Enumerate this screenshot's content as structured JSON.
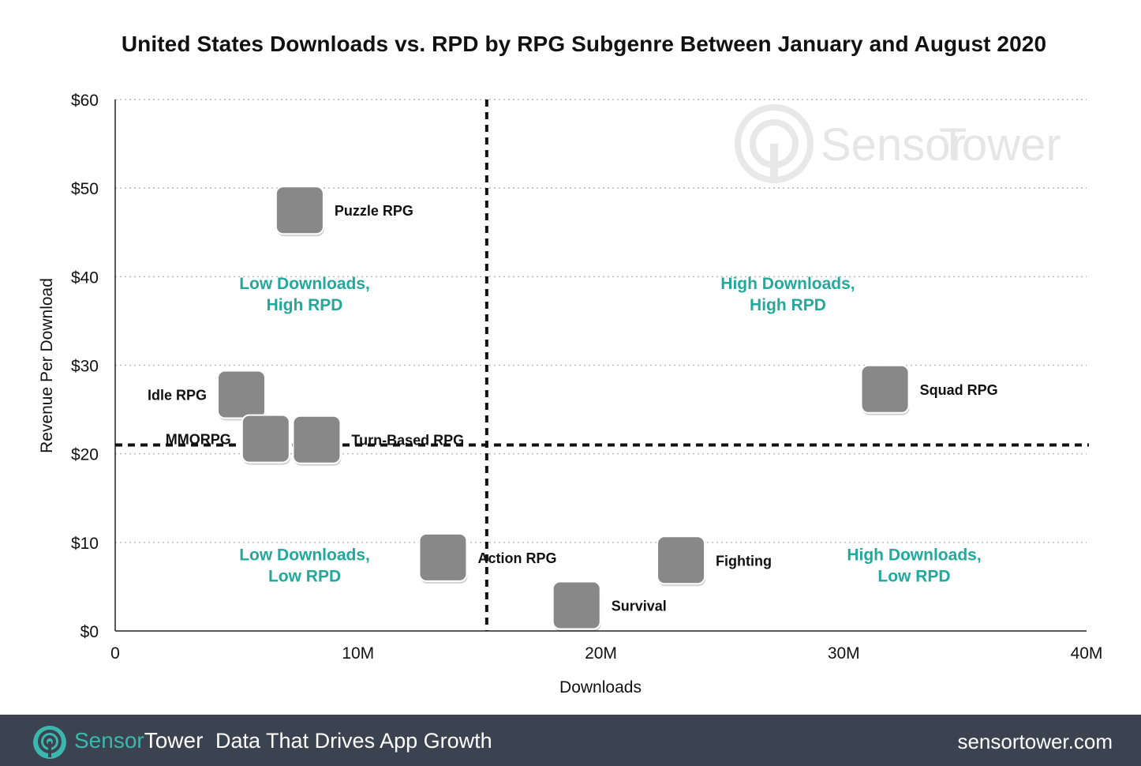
{
  "title": "United States Downloads vs. RPD by RPG Subgenre Between January and August 2020",
  "watermark": {
    "brand_left": "Sensor",
    "brand_right": "Tower"
  },
  "colors": {
    "quadrant_label": "#22a99c",
    "footer_bg": "#3c4350",
    "footer_accent": "#3bb8ad",
    "grid": "#bbbbbb",
    "divider": "#111111"
  },
  "chart_data": {
    "type": "scatter",
    "title": "United States Downloads vs. RPD by RPG Subgenre Between January and August 2020",
    "xlabel": "Downloads",
    "ylabel": "Revenue Per Download",
    "xlim": [
      0,
      40000000
    ],
    "ylim": [
      0,
      60
    ],
    "x_ticks": [
      {
        "value": 0,
        "label": "0"
      },
      {
        "value": 10000000,
        "label": "10M"
      },
      {
        "value": 20000000,
        "label": "20M"
      },
      {
        "value": 30000000,
        "label": "30M"
      },
      {
        "value": 40000000,
        "label": "40M"
      }
    ],
    "y_ticks": [
      {
        "value": 0,
        "label": "$0"
      },
      {
        "value": 10,
        "label": "$10"
      },
      {
        "value": 20,
        "label": "$20"
      },
      {
        "value": 30,
        "label": "$30"
      },
      {
        "value": 40,
        "label": "$40"
      },
      {
        "value": 50,
        "label": "$50"
      },
      {
        "value": 60,
        "label": "$60"
      }
    ],
    "grid": "horizontal dotted",
    "reference_lines": {
      "x": 15300000,
      "y": 21
    },
    "points": [
      {
        "label": "Puzzle RPG",
        "x": 7600000,
        "y": 47.5,
        "icon": "dragon-ball-icon",
        "label_side": "right"
      },
      {
        "label": "Idle RPG",
        "x": 5200000,
        "y": 26.7,
        "icon": "idle-rpg-game-icon",
        "label_side": "left"
      },
      {
        "label": "MMORPG",
        "x": 6200000,
        "y": 21.7,
        "icon": "black-desert-mobile-icon",
        "label_side": "left"
      },
      {
        "label": "Turn-Based RPG",
        "x": 8300000,
        "y": 21.6,
        "icon": "fate-grand-order-icon",
        "label_side": "right"
      },
      {
        "label": "Squad RPG",
        "x": 31700000,
        "y": 27.3,
        "icon": "marvel-strike-force-icon",
        "label_side": "right"
      },
      {
        "label": "Action RPG",
        "x": 13500000,
        "y": 8.3,
        "icon": "action-rpg-game-icon",
        "label_side": "right"
      },
      {
        "label": "Fighting",
        "x": 23300000,
        "y": 8.0,
        "icon": "marvel-contest-of-champions-icon",
        "label_side": "right"
      },
      {
        "label": "Survival",
        "x": 19000000,
        "y": 2.9,
        "icon": "survival-game-icon",
        "label_side": "right"
      }
    ],
    "quadrant_labels": [
      {
        "lines": [
          "Low Downloads,",
          "High RPD"
        ],
        "x": 7800000,
        "y": 38.6
      },
      {
        "lines": [
          "High Downloads,",
          "High RPD"
        ],
        "x": 27700000,
        "y": 38.6
      },
      {
        "lines": [
          "Low Downloads,",
          "Low RPD"
        ],
        "x": 7800000,
        "y": 8.0
      },
      {
        "lines": [
          "High Downloads,",
          "Low RPD"
        ],
        "x": 32900000,
        "y": 8.0
      }
    ]
  },
  "footer": {
    "brand_part1": "Sensor",
    "brand_part2": "Tower",
    "tagline": "Data That Drives App Growth",
    "url": "sensortower.com"
  }
}
